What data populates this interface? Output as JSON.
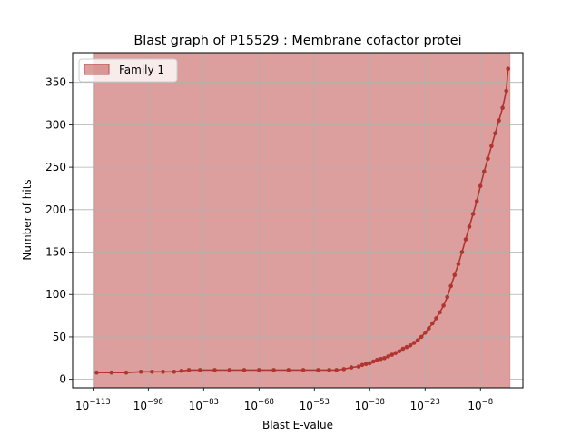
{
  "chart_data": {
    "type": "line",
    "title": "Blast graph of P15529 : Membrane cofactor protei",
    "xlabel": "Blast E-value",
    "ylabel": "Number of hits",
    "x_scale": "log10",
    "xlim_exponent": [
      -118.5,
      3.5
    ],
    "ylim": [
      -10,
      385
    ],
    "x_ticks": [
      {
        "base": "10",
        "exp": "−113",
        "value_exponent": -113
      },
      {
        "base": "10",
        "exp": "−98",
        "value_exponent": -98
      },
      {
        "base": "10",
        "exp": "−83",
        "value_exponent": -83
      },
      {
        "base": "10",
        "exp": "−68",
        "value_exponent": -68
      },
      {
        "base": "10",
        "exp": "−53",
        "value_exponent": -53
      },
      {
        "base": "10",
        "exp": "−38",
        "value_exponent": -38
      },
      {
        "base": "10",
        "exp": "−23",
        "value_exponent": -23
      },
      {
        "base": "10",
        "exp": "−8",
        "value_exponent": -8
      }
    ],
    "y_ticks": [
      "0",
      "50",
      "100",
      "150",
      "200",
      "250",
      "300",
      "350"
    ],
    "grid": true,
    "legend_position": "top-left",
    "legend": [
      "Family 1"
    ],
    "shaded_band": {
      "name": "Family 1",
      "x_exponent_range": [
        -112.5,
        0.0
      ],
      "color": "#c0504d"
    },
    "series": [
      {
        "color": "#b03530",
        "x_exponent": [
          -112,
          -108,
          -104,
          -100,
          -97,
          -94,
          -91,
          -89,
          -87,
          -84,
          -80,
          -76,
          -72,
          -68,
          -64,
          -60,
          -56,
          -52,
          -49,
          -47,
          -45,
          -43,
          -41,
          -40,
          -39,
          -38,
          -37,
          -36,
          -35,
          -34,
          -33,
          -32,
          -31,
          -30,
          -29,
          -28,
          -27,
          -26,
          -25,
          -24,
          -23,
          -22,
          -21,
          -20,
          -19,
          -18,
          -17,
          -16,
          -15,
          -14,
          -13,
          -12,
          -11,
          -10,
          -9,
          -8,
          -7,
          -6,
          -5,
          -4,
          -3,
          -2,
          -1,
          -0.5
        ],
        "y": [
          8,
          8,
          8,
          9,
          9,
          9,
          9,
          10,
          11,
          11,
          11,
          11,
          11,
          11,
          11,
          11,
          11,
          11,
          11,
          11,
          12,
          14,
          15,
          17,
          18,
          19,
          21,
          23,
          24,
          25,
          27,
          29,
          31,
          33,
          36,
          38,
          40,
          43,
          46,
          50,
          55,
          60,
          66,
          72,
          79,
          87,
          97,
          110,
          123,
          136,
          150,
          165,
          180,
          195,
          210,
          228,
          245,
          260,
          275,
          290,
          305,
          320,
          340,
          366
        ]
      }
    ]
  }
}
